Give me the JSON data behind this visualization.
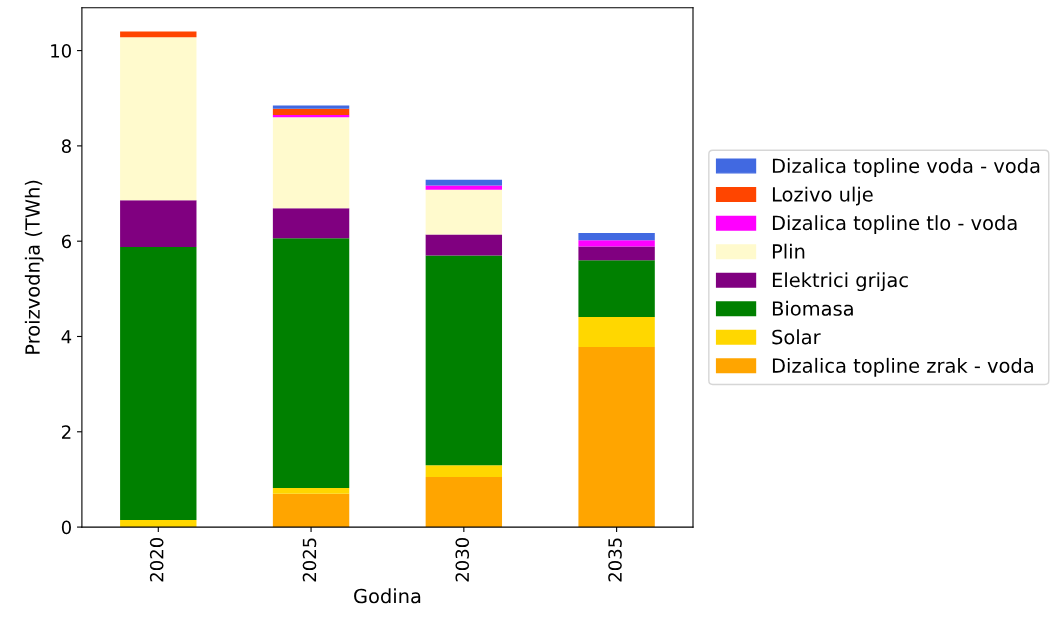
{
  "chart_data": {
    "type": "bar",
    "stacked": true,
    "xlabel": "Godina",
    "ylabel": "Proizvodnja (TWh)",
    "categories": [
      "2020",
      "2025",
      "2030",
      "2035"
    ],
    "series": [
      {
        "name": "Dizalica topline zrak - voda",
        "color": "#ffa500",
        "values": [
          null,
          0.7,
          1.05,
          3.78
        ]
      },
      {
        "name": "Solar",
        "color": "#ffd700",
        "values": [
          0.15,
          0.12,
          0.25,
          0.63
        ]
      },
      {
        "name": "Biomasa",
        "color": "#008000",
        "values": [
          5.73,
          5.24,
          4.4,
          1.19
        ]
      },
      {
        "name": "Elektrici grijac",
        "color": "#800080",
        "values": [
          0.98,
          0.63,
          0.44,
          0.29
        ]
      },
      {
        "name": "Plin",
        "color": "#fffacd",
        "values": [
          3.42,
          1.91,
          0.94,
          0
        ]
      },
      {
        "name": "Dizalica topline tlo - voda",
        "color": "#ff00ff",
        "values": [
          0,
          0.05,
          0.09,
          0.13
        ]
      },
      {
        "name": "Lozivo ulje",
        "color": "#ff4500",
        "values": [
          0.12,
          0.13,
          0,
          0
        ]
      },
      {
        "name": "Dizalica topline voda - voda",
        "color": "#4169e1",
        "values": [
          0,
          0.07,
          0.12,
          0.15
        ]
      }
    ],
    "ylim": [
      0,
      10.9
    ],
    "yticks": [
      0,
      2,
      4,
      6,
      8,
      10
    ],
    "grid": false,
    "legend": "right"
  }
}
